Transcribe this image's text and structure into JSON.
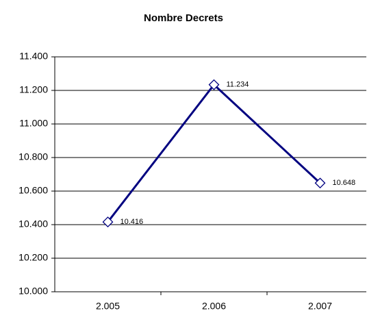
{
  "chart_data": {
    "type": "line",
    "title": "Nombre Decrets",
    "categories": [
      "2.005",
      "2.006",
      "2.007"
    ],
    "series": [
      {
        "name": "Nombre Decrets",
        "color": "#000080",
        "values": [
          10416,
          11234,
          10648
        ],
        "value_labels": [
          "10.416",
          "11.234",
          "10.648"
        ]
      }
    ],
    "ylim": [
      10000,
      11400
    ],
    "yticks": [
      {
        "value": 10000,
        "label": "10.000"
      },
      {
        "value": 10200,
        "label": "10.200"
      },
      {
        "value": 10400,
        "label": "10.400"
      },
      {
        "value": 10600,
        "label": "10.600"
      },
      {
        "value": 10800,
        "label": "10.800"
      },
      {
        "value": 11000,
        "label": "11.000"
      },
      {
        "value": 11200,
        "label": "11.200"
      },
      {
        "value": 11400,
        "label": "11.400"
      }
    ],
    "grid": true
  }
}
